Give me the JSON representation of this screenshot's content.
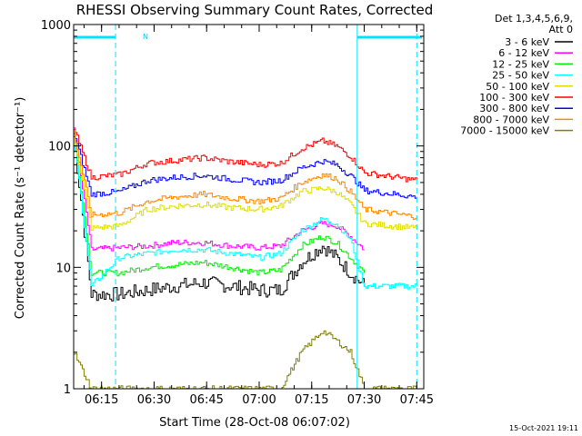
{
  "chart_data": {
    "type": "line",
    "title": "RHESSI Observing Summary Count Rates, Corrected",
    "xlabel": "Start Time (28-Oct-08 06:07:02)",
    "ylabel": "Corrected Count Rate (s⁻¹ detector⁻¹)",
    "yscale": "log",
    "ylim": [
      1,
      1000
    ],
    "xlim": [
      "06:07:02",
      "07:47:00"
    ],
    "x_ticks": [
      "06:15",
      "06:30",
      "06:45",
      "07:00",
      "07:15",
      "07:30",
      "07:45"
    ],
    "y_ticks": [
      "1",
      "10",
      "100",
      "1000"
    ],
    "legend": {
      "placement": "top-right",
      "header": [
        "Det 1,3,4,5,6,9,",
        "Att 0"
      ]
    },
    "annotations": {
      "N_label": "N",
      "timestamp": "15-Oct-2021 19:11"
    },
    "series": [
      {
        "name": "3 - 6 keV",
        "color": "#000000",
        "x": [
          "06:07",
          "06:12",
          "06:20",
          "06:28",
          "06:36",
          "06:44",
          "06:52",
          "07:00",
          "07:06",
          "07:12",
          "07:18",
          "07:22",
          "07:26",
          "07:30"
        ],
        "values": [
          120,
          6,
          6,
          6.5,
          7,
          7.5,
          7,
          6.5,
          6.5,
          11,
          15,
          12,
          9,
          7
        ]
      },
      {
        "name": "6 - 12 keV",
        "color": "#ff00ff",
        "x": [
          "06:07",
          "06:12",
          "06:20",
          "06:28",
          "06:36",
          "06:44",
          "06:52",
          "07:00",
          "07:06",
          "07:12",
          "07:18",
          "07:22",
          "07:26",
          "07:30"
        ],
        "values": [
          140,
          14,
          14.5,
          15,
          16,
          16,
          15,
          14.5,
          15,
          20,
          23,
          22,
          18,
          14
        ]
      },
      {
        "name": "12 - 25 keV",
        "color": "#00ee00",
        "x": [
          "06:07",
          "06:12",
          "06:20",
          "06:28",
          "06:36",
          "06:44",
          "06:52",
          "07:00",
          "07:06",
          "07:12",
          "07:18",
          "07:22",
          "07:26",
          "07:30"
        ],
        "values": [
          130,
          9,
          9,
          10,
          10.5,
          11,
          10,
          9,
          9.5,
          15,
          18,
          16,
          12,
          9
        ]
      },
      {
        "name": "25 - 50 keV",
        "color": "#00ffff",
        "x": [
          "06:07",
          "06:12",
          "06:20",
          "06:28",
          "06:36",
          "06:44",
          "06:52",
          "07:00",
          "07:06",
          "07:12",
          "07:18",
          "07:22",
          "07:26",
          "07:30",
          "07:45"
        ],
        "values": [
          125,
          7,
          12,
          13,
          14,
          14,
          13,
          12,
          13,
          20,
          25,
          23,
          17,
          7,
          7
        ]
      },
      {
        "name": "50 - 100 keV",
        "color": "#dddd00",
        "x": [
          "06:07",
          "06:12",
          "06:20",
          "06:28",
          "06:36",
          "06:44",
          "06:52",
          "07:00",
          "07:06",
          "07:12",
          "07:18",
          "07:22",
          "07:26",
          "07:30",
          "07:45"
        ],
        "values": [
          125,
          21,
          22,
          30,
          32,
          33,
          31,
          30,
          32,
          42,
          45,
          42,
          33,
          23,
          21
        ]
      },
      {
        "name": "100 - 300 keV",
        "color": "#ff0000",
        "x": [
          "06:07",
          "06:12",
          "06:20",
          "06:28",
          "06:36",
          "06:44",
          "06:52",
          "07:00",
          "07:06",
          "07:12",
          "07:18",
          "07:22",
          "07:26",
          "07:30",
          "07:45"
        ],
        "values": [
          140,
          55,
          58,
          72,
          76,
          80,
          74,
          70,
          72,
          95,
          110,
          100,
          82,
          60,
          52
        ]
      },
      {
        "name": "300 - 800 keV",
        "color": "#0000ff",
        "x": [
          "06:07",
          "06:12",
          "06:20",
          "06:28",
          "06:36",
          "06:44",
          "06:52",
          "07:00",
          "07:06",
          "07:12",
          "07:18",
          "07:22",
          "07:26",
          "07:30",
          "07:45"
        ],
        "values": [
          130,
          40,
          42,
          52,
          55,
          57,
          53,
          50,
          52,
          66,
          75,
          70,
          57,
          43,
          38
        ]
      },
      {
        "name": "800 - 7000 keV",
        "color": "#ff8800",
        "x": [
          "06:07",
          "06:12",
          "06:20",
          "06:28",
          "06:36",
          "06:44",
          "06:52",
          "07:00",
          "07:06",
          "07:12",
          "07:18",
          "07:22",
          "07:26",
          "07:30",
          "07:45"
        ],
        "values": [
          130,
          27,
          28,
          35,
          38,
          40,
          37,
          35,
          37,
          50,
          58,
          54,
          42,
          30,
          26
        ]
      },
      {
        "name": "7000 - 15000 keV",
        "color": "#808000",
        "x": [
          "06:07",
          "06:12",
          "06:20",
          "06:28",
          "06:36",
          "06:44",
          "06:52",
          "07:00",
          "07:06",
          "07:12",
          "07:18",
          "07:22",
          "07:26",
          "07:30",
          "07:45"
        ],
        "values": [
          2,
          1,
          1,
          1,
          1,
          1,
          1,
          1,
          1,
          2,
          3,
          2.5,
          2,
          1,
          1
        ]
      }
    ]
  }
}
